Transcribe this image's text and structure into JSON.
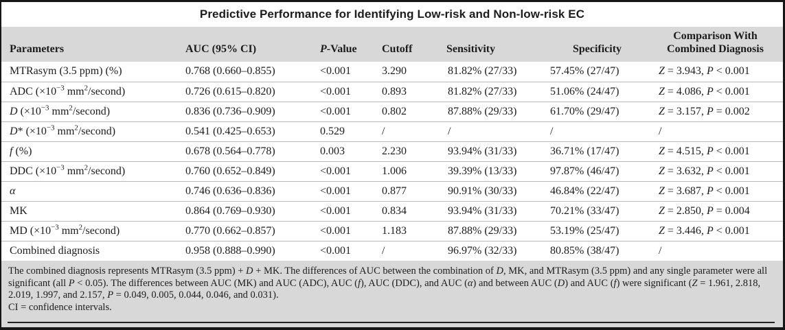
{
  "title": "Predictive Performance for Identifying Low-risk and Non-low-risk EC",
  "table": {
    "columns": [
      "Parameters",
      "AUC (95% CI)",
      "{i}P{/i}-Value",
      "Cutoff",
      "Sensitivity",
      "Specificity",
      "Comparison With Combined Diagnosis"
    ],
    "rows": [
      [
        "MTRasym (3.5 ppm) (%)",
        "0.768 (0.660–0.855)",
        "<0.001",
        "3.290",
        "81.82% (27/33)",
        "57.45% (27/47)",
        "{i}Z{/i} = 3.943, {i}P{/i} < 0.001"
      ],
      [
        "ADC (×10{sup}−3{/sup} mm{sup}2{/sup}/second)",
        "0.726 (0.615–0.820)",
        "<0.001",
        "0.893",
        "81.82% (27/33)",
        "51.06% (24/47)",
        "{i}Z{/i} = 4.086, {i}P{/i} < 0.001"
      ],
      [
        "{i}D{/i} (×10{sup}−3{/sup} mm{sup}2{/sup}/second)",
        "0.836 (0.736–0.909)",
        "<0.001",
        "0.802",
        "87.88% (29/33)",
        "61.70% (29/47)",
        "{i}Z{/i} = 3.157, {i}P{/i} = 0.002"
      ],
      [
        "{i}D{/i}* (×10{sup}−3{/sup} mm{sup}2{/sup}/second)",
        "0.541 (0.425–0.653)",
        "0.529",
        "/",
        "/",
        "/",
        "/"
      ],
      [
        "{i}f{/i} (%)",
        "0.678 (0.564–0.778)",
        "0.003",
        "2.230",
        "93.94% (31/33)",
        "36.71% (17/47)",
        "{i}Z{/i} = 4.515, {i}P{/i} < 0.001"
      ],
      [
        "DDC (×10{sup}−3{/sup} mm{sup}2{/sup}/second)",
        "0.760 (0.652–0.849)",
        "<0.001",
        "1.006",
        "39.39% (13/33)",
        "97.87% (46/47)",
        "{i}Z{/i} = 3.632, {i}P{/i} < 0.001"
      ],
      [
        "{i}α{/i}",
        "0.746 (0.636–0.836)",
        "<0.001",
        "0.877",
        "90.91% (30/33)",
        "46.84% (22/47)",
        "{i}Z{/i} = 3.687, {i}P{/i} < 0.001"
      ],
      [
        "MK",
        "0.864 (0.769–0.930)",
        "<0.001",
        "0.834",
        "93.94% (31/33)",
        "70.21% (33/47)",
        "{i}Z{/i} = 2.850, {i}P{/i} = 0.004"
      ],
      [
        "MD (×10{sup}−3{/sup} mm{sup}2{/sup}/second)",
        "0.770 (0.662–0.857)",
        "<0.001",
        "1.183",
        "87.88% (29/33)",
        "53.19% (25/47)",
        "{i}Z{/i} = 3.446, {i}P{/i} < 0.001"
      ],
      [
        "Combined diagnosis",
        "0.958 (0.888–0.990)",
        "<0.001",
        "/",
        "96.97% (32/33)",
        "80.85% (38/47)",
        "/"
      ]
    ]
  },
  "footnotes": [
    "The combined diagnosis represents MTRasym (3.5 ppm) + {i}D{/i} + MK. The differences of AUC between the combination of {i}D{/i}, MK, and MTRasym (3.5 ppm) and any single parameter were all significant (all {i}P{/i} < 0.05). The differences between AUC (MK) and AUC (ADC), AUC ({i}f{/i}), AUC (DDC), and AUC ({i}α{/i}) and between AUC ({i}D{/i}) and AUC ({i}f{/i}) were significant ({i}Z{/i} = 1.961, 2.818, 2.019, 1.997, and 2.157, {i}P{/i} = 0.049, 0.005, 0.044, 0.046, and 0.031).",
    "CI = confidence intervals."
  ],
  "colors": {
    "band": "#d8d8d8",
    "rule": "#b9b9b9",
    "frame": "#161616",
    "text": "#1c1c1c"
  }
}
